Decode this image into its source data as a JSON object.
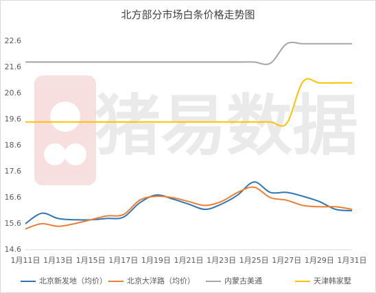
{
  "chart_data": {
    "type": "line",
    "title": "北方部分市场白条价格走势图",
    "watermark": "猪易数据",
    "categories": [
      "1月11日",
      null,
      "1月13日",
      null,
      "1月15日",
      null,
      "1月17日",
      null,
      "1月19日",
      null,
      "1月21日",
      null,
      "1月23日",
      null,
      "1月25日",
      null,
      "1月27日",
      null,
      "1月29日",
      null,
      "1月31日"
    ],
    "series": [
      {
        "name": "北京新发地（均价）",
        "color": "#2e75b6",
        "values": [
          15.6,
          16.0,
          15.8,
          15.75,
          15.75,
          15.8,
          15.85,
          16.4,
          16.7,
          16.55,
          16.35,
          16.15,
          16.35,
          16.7,
          17.2,
          16.8,
          16.8,
          16.65,
          16.45,
          16.15,
          16.1
        ]
      },
      {
        "name": "北京大洋路（均价）",
        "color": "#ed7d31",
        "values": [
          15.4,
          15.6,
          15.5,
          15.6,
          15.75,
          15.9,
          15.95,
          16.5,
          16.65,
          16.6,
          16.45,
          16.3,
          16.45,
          16.8,
          17.0,
          16.6,
          16.5,
          16.3,
          16.25,
          16.25,
          16.15
        ]
      },
      {
        "name": "内蒙古美通",
        "color": "#a5a5a5",
        "values": [
          21.8,
          21.8,
          21.8,
          21.8,
          21.8,
          21.8,
          21.8,
          21.8,
          21.8,
          21.8,
          21.8,
          21.8,
          21.8,
          21.8,
          21.8,
          21.75,
          22.5,
          22.5,
          22.5,
          22.5,
          22.5
        ]
      },
      {
        "name": "天津韩家墅",
        "color": "#ffc000",
        "values": [
          19.5,
          19.5,
          19.5,
          19.5,
          19.5,
          19.5,
          19.5,
          19.5,
          19.5,
          19.5,
          19.5,
          19.5,
          19.5,
          19.5,
          19.5,
          19.5,
          19.45,
          21.05,
          21.0,
          21.0,
          21.0
        ]
      }
    ],
    "ylim": [
      14.6,
      22.6
    ],
    "yticks": [
      14.6,
      15.6,
      16.6,
      17.6,
      18.6,
      19.6,
      20.6,
      21.6,
      22.6
    ],
    "grid": false
  }
}
